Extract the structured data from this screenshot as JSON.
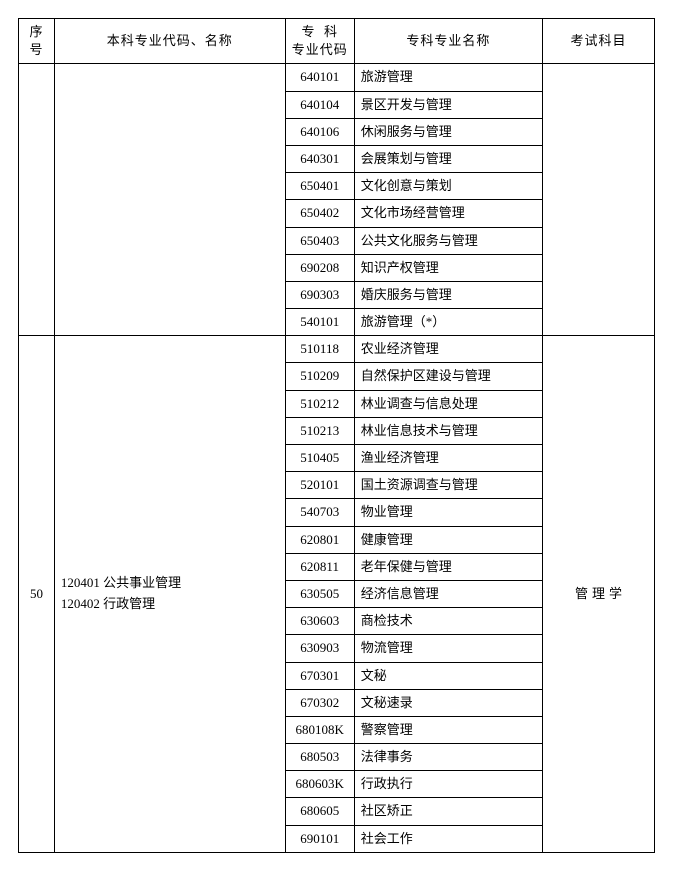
{
  "headers": {
    "idx": "序号",
    "major": "本科专业代码、名称",
    "code": "专  科\n专业代码",
    "name": "专科专业名称",
    "exam": "考试科目"
  },
  "group1": {
    "idx": "",
    "major": "",
    "exam": "",
    "rows": [
      {
        "code": "640101",
        "name": "旅游管理"
      },
      {
        "code": "640104",
        "name": "景区开发与管理"
      },
      {
        "code": "640106",
        "name": "休闲服务与管理"
      },
      {
        "code": "640301",
        "name": "会展策划与管理"
      },
      {
        "code": "650401",
        "name": "文化创意与策划"
      },
      {
        "code": "650402",
        "name": "文化市场经营管理"
      },
      {
        "code": "650403",
        "name": "公共文化服务与管理"
      },
      {
        "code": "690208",
        "name": "知识产权管理"
      },
      {
        "code": "690303",
        "name": "婚庆服务与管理"
      },
      {
        "code": "540101",
        "name": "旅游管理（*）"
      }
    ]
  },
  "group2": {
    "idx": "50",
    "major_line1": "120401 公共事业管理",
    "major_line2": "120402 行政管理",
    "exam": "管理学",
    "rows": [
      {
        "code": "510118",
        "name": "农业经济管理"
      },
      {
        "code": "510209",
        "name": "自然保护区建设与管理"
      },
      {
        "code": "510212",
        "name": "林业调查与信息处理"
      },
      {
        "code": "510213",
        "name": "林业信息技术与管理"
      },
      {
        "code": "510405",
        "name": "渔业经济管理"
      },
      {
        "code": "520101",
        "name": "国土资源调查与管理"
      },
      {
        "code": "540703",
        "name": "物业管理"
      },
      {
        "code": "620801",
        "name": "健康管理"
      },
      {
        "code": "620811",
        "name": "老年保健与管理"
      },
      {
        "code": "630505",
        "name": "经济信息管理"
      },
      {
        "code": "630603",
        "name": "商检技术"
      },
      {
        "code": "630903",
        "name": "物流管理"
      },
      {
        "code": "670301",
        "name": "文秘"
      },
      {
        "code": "670302",
        "name": "文秘速录"
      },
      {
        "code": "680108K",
        "name": "警察管理"
      },
      {
        "code": "680503",
        "name": "法律事务"
      },
      {
        "code": "680603K",
        "name": "行政执行"
      },
      {
        "code": "680605",
        "name": "社区矫正"
      },
      {
        "code": "690101",
        "name": "社会工作"
      }
    ]
  }
}
